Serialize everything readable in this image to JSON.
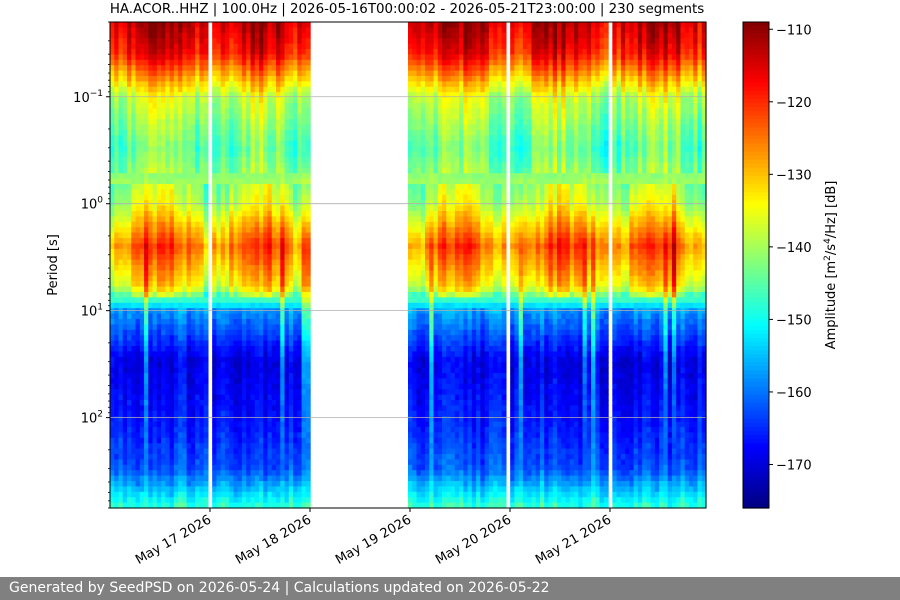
{
  "chart_data": {
    "type": "heatmap",
    "title": "HA.ACOR..HHZ | 100.0Hz | 2026-05-16T00:00:02 - 2026-05-21T23:00:00 | 230 segments",
    "ylabel": "Period [s]",
    "y_scale": "log",
    "y_inverted": true,
    "ylim": [
      0.02,
      700
    ],
    "y_tick_labels": [
      {
        "value": 0.1,
        "base": "10",
        "exp": "−1"
      },
      {
        "value": 1,
        "base": "10",
        "exp": "0"
      },
      {
        "value": 10,
        "base": "10",
        "exp": "1"
      },
      {
        "value": 100,
        "base": "10",
        "exp": "2"
      }
    ],
    "x_tick_labels": [
      "May 17 2026",
      "May 18 2026",
      "May 19 2026",
      "May 20 2026",
      "May 21 2026"
    ],
    "x_ticks_day_offset": [
      1,
      2,
      3,
      4,
      5
    ],
    "x_range_days": [
      0,
      5.96
    ],
    "data_gaps_days": [
      [
        0.97,
        1.01
      ],
      [
        2.0,
        3.0
      ],
      [
        3.98,
        4.02
      ],
      [
        4.97,
        5.01
      ]
    ],
    "grid": "horizontal",
    "colorbar": {
      "label_prefix": "Amplitude [m",
      "label_sup1": "2",
      "label_mid": "/s",
      "label_sup2": "4",
      "label_suffix": "/Hz] [dB]",
      "range": [
        -176,
        -109
      ],
      "ticks": [
        -110,
        -120,
        -130,
        -140,
        -150,
        -160,
        -170
      ],
      "colormap": "jet"
    },
    "period_profile": [
      {
        "period": 0.02,
        "db": -113
      },
      {
        "period": 0.04,
        "db": -118
      },
      {
        "period": 0.1,
        "db": -138
      },
      {
        "period": 0.3,
        "db": -145
      },
      {
        "period": 1,
        "db": -138
      },
      {
        "period": 2.5,
        "db": -124
      },
      {
        "period": 6,
        "db": -134
      },
      {
        "period": 10,
        "db": -158
      },
      {
        "period": 30,
        "db": -170
      },
      {
        "period": 100,
        "db": -167
      },
      {
        "period": 300,
        "db": -163
      },
      {
        "period": 700,
        "db": -148
      }
    ]
  },
  "footer": {
    "text": "Generated by SeedPSD on 2026-05-24 | Calculations updated on 2026-05-22"
  }
}
